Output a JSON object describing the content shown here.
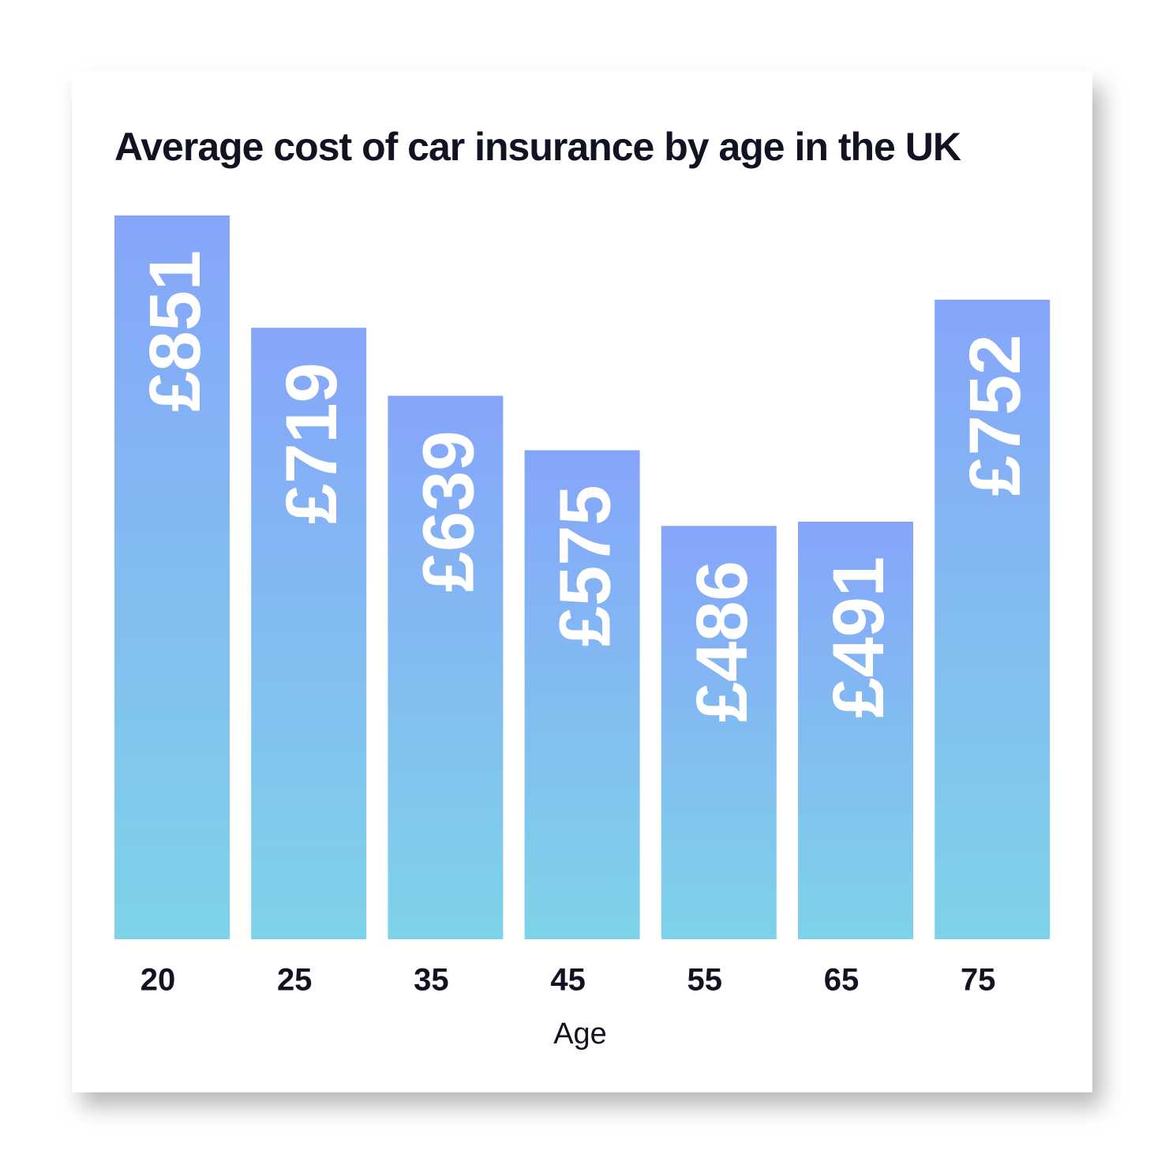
{
  "chart_data": {
    "type": "bar",
    "title": "Average cost of car insurance by age in the UK",
    "x_label": "Age",
    "categories": [
      "20",
      "25",
      "35",
      "45",
      "55",
      "65",
      "75"
    ],
    "values": [
      851,
      719,
      639,
      575,
      486,
      491,
      752
    ],
    "value_labels": [
      "£851",
      "£719",
      "£639",
      "£575",
      "£486",
      "£491",
      "£752"
    ],
    "gradient": [
      "#86a5fa",
      "#7ed3e8"
    ]
  }
}
